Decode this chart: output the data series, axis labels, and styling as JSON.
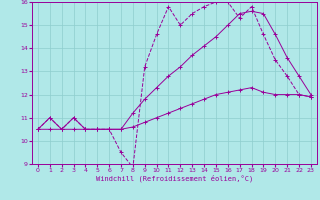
{
  "xlabel": "Windchill (Refroidissement éolien,°C)",
  "bg_color": "#b0e8e8",
  "grid_color": "#8ecece",
  "line_color": "#990099",
  "x_min": 0,
  "x_max": 23,
  "y_min": 9,
  "y_max": 16,
  "line1_x": [
    0,
    1,
    2,
    3,
    4,
    5,
    6,
    7,
    8,
    9,
    10,
    11,
    12,
    13,
    14,
    15,
    16,
    17,
    18,
    19,
    20,
    21,
    22,
    23
  ],
  "line1_y": [
    10.5,
    11.0,
    10.5,
    11.0,
    10.5,
    10.5,
    10.5,
    9.5,
    8.85,
    13.2,
    14.6,
    15.8,
    15.0,
    15.5,
    15.8,
    16.0,
    16.0,
    15.3,
    15.8,
    14.6,
    13.5,
    12.8,
    12.0,
    11.9
  ],
  "line1_style": "--",
  "line2_x": [
    0,
    1,
    2,
    3,
    4,
    5,
    6,
    7,
    8,
    9,
    10,
    11,
    12,
    13,
    14,
    15,
    16,
    17,
    18,
    19,
    20,
    21,
    22,
    23
  ],
  "line2_y": [
    10.5,
    11.0,
    10.5,
    11.0,
    10.5,
    10.5,
    10.5,
    10.5,
    11.2,
    11.8,
    12.3,
    12.8,
    13.2,
    13.7,
    14.1,
    14.5,
    15.0,
    15.5,
    15.6,
    15.5,
    14.6,
    13.6,
    12.8,
    12.0
  ],
  "line2_style": "-",
  "line3_x": [
    0,
    1,
    2,
    3,
    4,
    5,
    6,
    7,
    8,
    9,
    10,
    11,
    12,
    13,
    14,
    15,
    16,
    17,
    18,
    19,
    20,
    21,
    22,
    23
  ],
  "line3_y": [
    10.5,
    10.5,
    10.5,
    10.5,
    10.5,
    10.5,
    10.5,
    10.5,
    10.6,
    10.8,
    11.0,
    11.2,
    11.4,
    11.6,
    11.8,
    12.0,
    12.1,
    12.2,
    12.3,
    12.1,
    12.0,
    12.0,
    12.0,
    11.9
  ],
  "line3_style": "-"
}
